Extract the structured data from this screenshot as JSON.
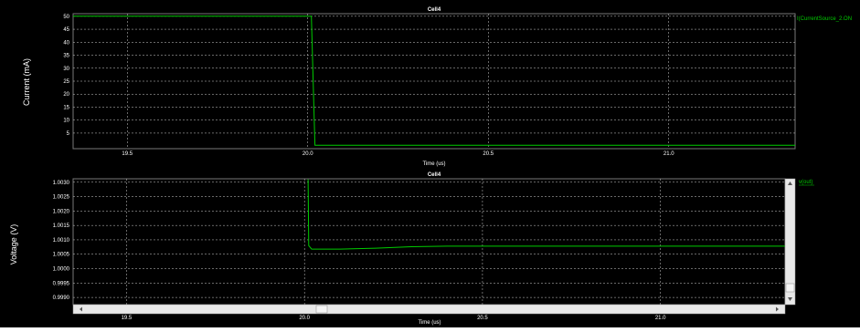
{
  "chart_data": [
    {
      "type": "line",
      "title": "Cell4",
      "xlabel": "Time (us)",
      "ylabel": "Current (mA)",
      "xlim": [
        19.35,
        21.35
      ],
      "ylim": [
        -1,
        51
      ],
      "xticks": [
        "19.5",
        "20.0",
        "20.5",
        "21.0"
      ],
      "xtick_values": [
        19.5,
        20.0,
        20.5,
        21.0
      ],
      "yticks": [
        "5",
        "10",
        "15",
        "20",
        "25",
        "30",
        "35",
        "40",
        "45",
        "50"
      ],
      "ytick_values": [
        5,
        10,
        15,
        20,
        25,
        30,
        35,
        40,
        45,
        50
      ],
      "grid": true,
      "legend_position": "top-right outside",
      "series": [
        {
          "name": "I(CurrentSource_2.ON",
          "color": "#00cc00",
          "x": [
            19.35,
            20.0,
            20.01,
            20.02,
            21.35
          ],
          "y": [
            50,
            50,
            50,
            0.3,
            0.3
          ]
        }
      ]
    },
    {
      "type": "line",
      "title": "Cell4",
      "xlabel": "Time (us)",
      "ylabel": "Voltage (V)",
      "xlim": [
        19.35,
        21.35
      ],
      "ylim": [
        0.99875,
        1.00312
      ],
      "xticks": [
        "19.5",
        "20.0",
        "20.5",
        "21.0"
      ],
      "xtick_values": [
        19.5,
        20.0,
        20.5,
        21.0
      ],
      "yticks": [
        "1.0030",
        "1.0025",
        "1.0020",
        "1.0015",
        "1.0010",
        "1.0005",
        "1.0000",
        "0.9995",
        "0.9990"
      ],
      "ytick_values": [
        1.003,
        1.0025,
        1.002,
        1.0015,
        1.001,
        1.0005,
        1.0,
        0.9995,
        0.999
      ],
      "grid": true,
      "legend_position": "top-right outside",
      "series": [
        {
          "name": "v(out)",
          "color": "#00cc00",
          "x": [
            20.01,
            20.012,
            20.02,
            20.1,
            20.2,
            20.3,
            20.4,
            20.5,
            21.35
          ],
          "y": [
            1.0031,
            1.0008,
            1.00068,
            1.00068,
            1.00071,
            1.00076,
            1.00078,
            1.00078,
            1.00078
          ]
        }
      ]
    }
  ]
}
